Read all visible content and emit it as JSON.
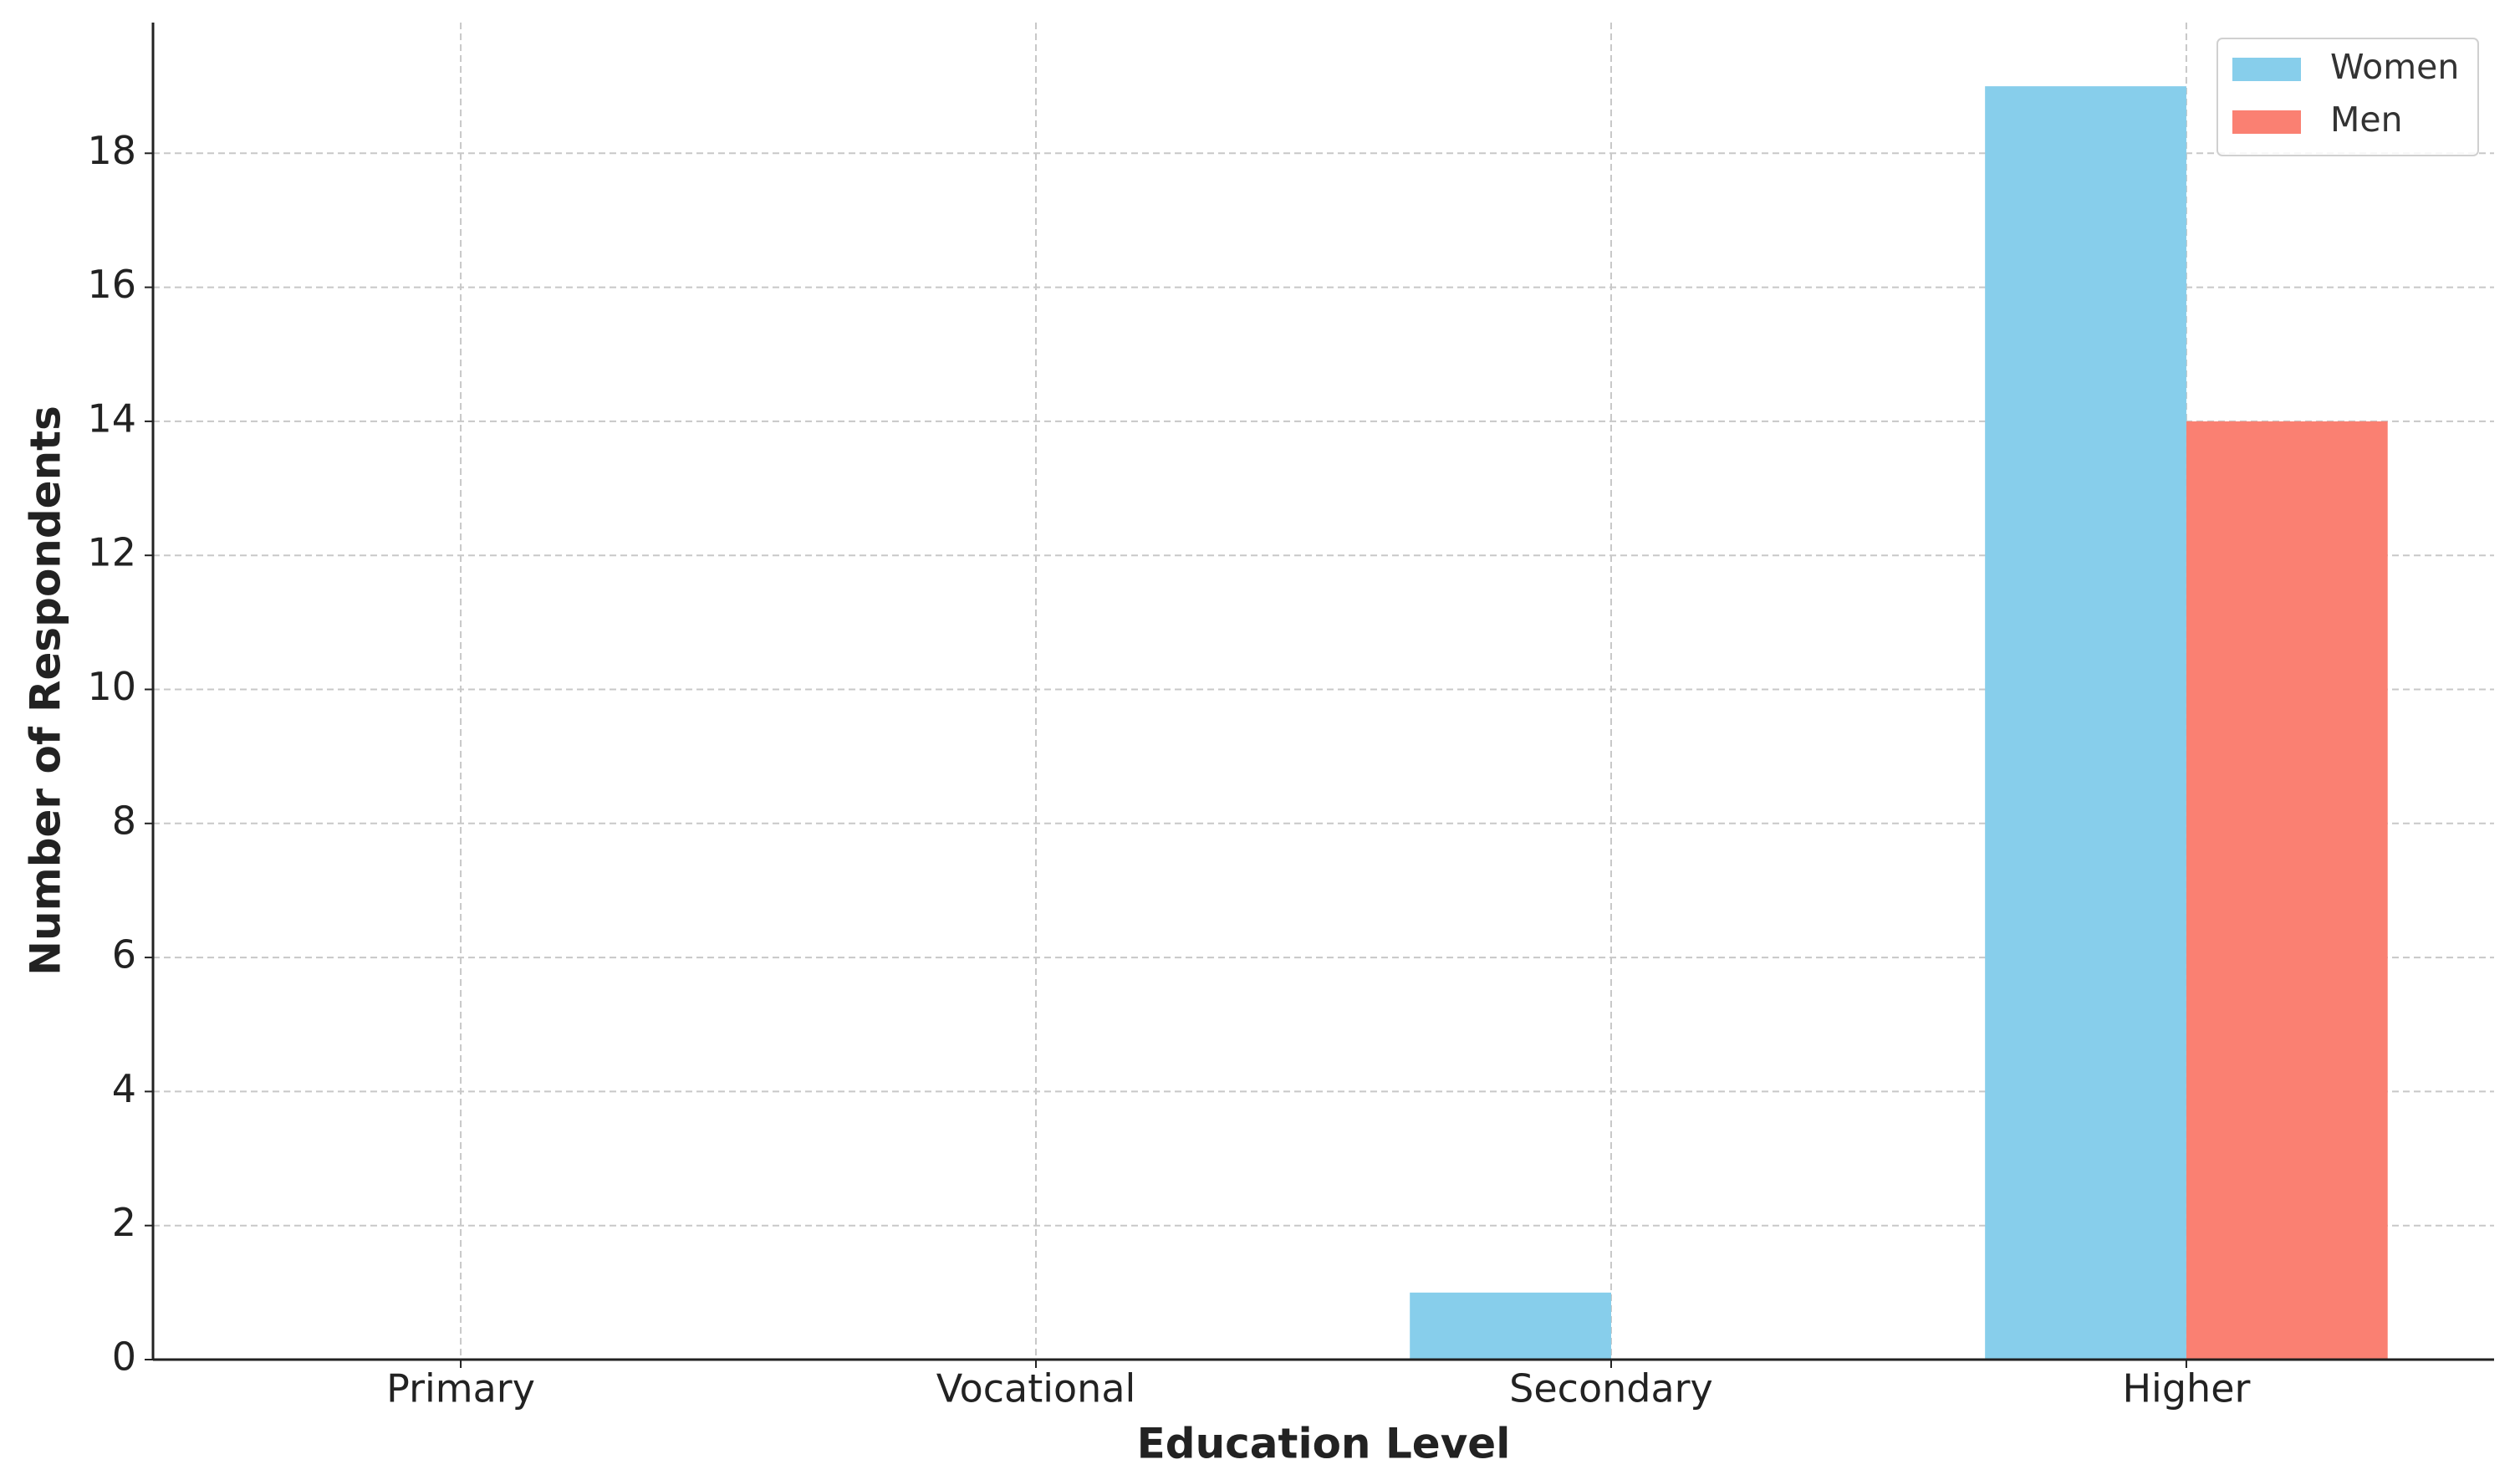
{
  "chart_data": {
    "type": "bar",
    "x_label": "Education Level",
    "y_label": "Number of Respondents",
    "categories": [
      "Primary",
      "Vocational",
      "Secondary",
      "Higher"
    ],
    "series": [
      {
        "name": "Women",
        "color": "#87ceeb",
        "values": [
          0,
          0,
          1,
          19
        ]
      },
      {
        "name": "Men",
        "color": "#fa8072",
        "values": [
          0,
          0,
          0,
          14
        ]
      }
    ],
    "ylim": [
      0,
      19.95
    ],
    "yticks": [
      0,
      2,
      4,
      6,
      8,
      10,
      12,
      14,
      16,
      18
    ],
    "grid": true,
    "legend": "upper right"
  }
}
